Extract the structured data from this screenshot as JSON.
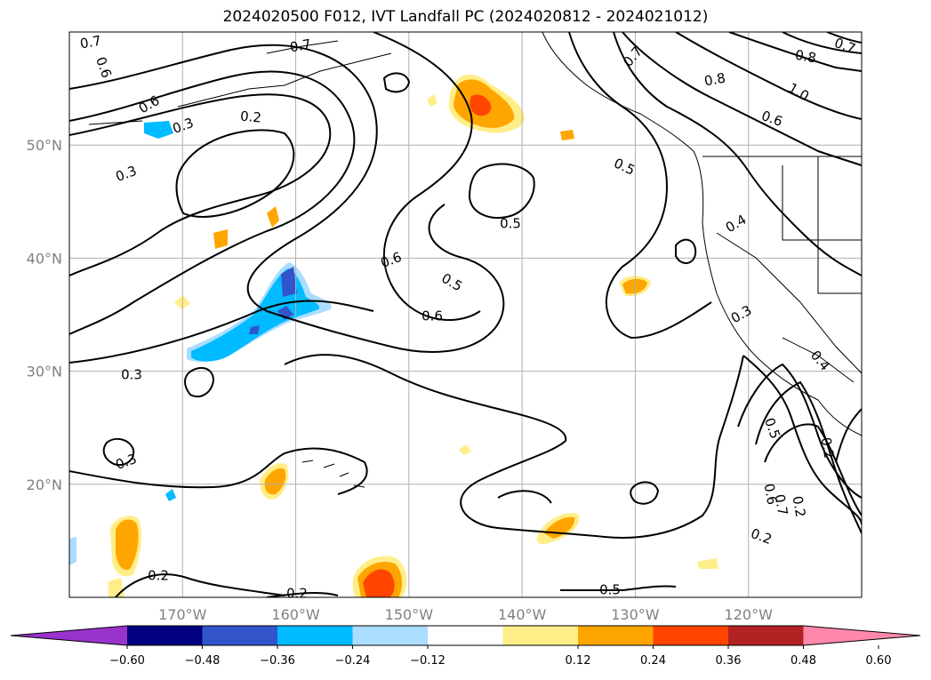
{
  "title": "2024020500 F012, IVT Landfall PC (2024020812 - 2024021012)",
  "map": {
    "lon_range": [
      -180,
      -110
    ],
    "lat_range": [
      10,
      60
    ],
    "lat_ticks": [
      "50°N",
      "40°N",
      "30°N",
      "20°N"
    ],
    "lon_ticks": [
      "170°W",
      "160°W",
      "150°W",
      "140°W",
      "130°W",
      "120°W"
    ],
    "gridlines": true
  },
  "contour_labels": [
    "0.7",
    "0.6",
    "0.7",
    "0.6",
    "0.3",
    "0.2",
    "0.3",
    "0.3",
    "0.3",
    "0.2",
    "0.2",
    "0.5",
    "0.6",
    "0.5",
    "0.6",
    "0.7",
    "0.8",
    "0.8",
    "0.7",
    "1.0",
    "0.6",
    "0.5",
    "0.4",
    "0.3",
    "0.4",
    "0.5",
    "0.2",
    "0.2",
    "0.5",
    "0.6",
    "0.7",
    "0.2"
  ],
  "colorbar": {
    "ticks": [
      "−0.60",
      "−0.48",
      "−0.36",
      "−0.24",
      "−0.12",
      "0.12",
      "0.24",
      "0.36",
      "0.48",
      "0.60"
    ],
    "colors": [
      "#9933cc",
      "#000080",
      "#3355cc",
      "#00bbff",
      "#aaddff",
      "#ffffff",
      "#ffee88",
      "#ffa500",
      "#ff4500",
      "#b22222",
      "#ff88aa",
      "#ff88aa"
    ]
  }
}
